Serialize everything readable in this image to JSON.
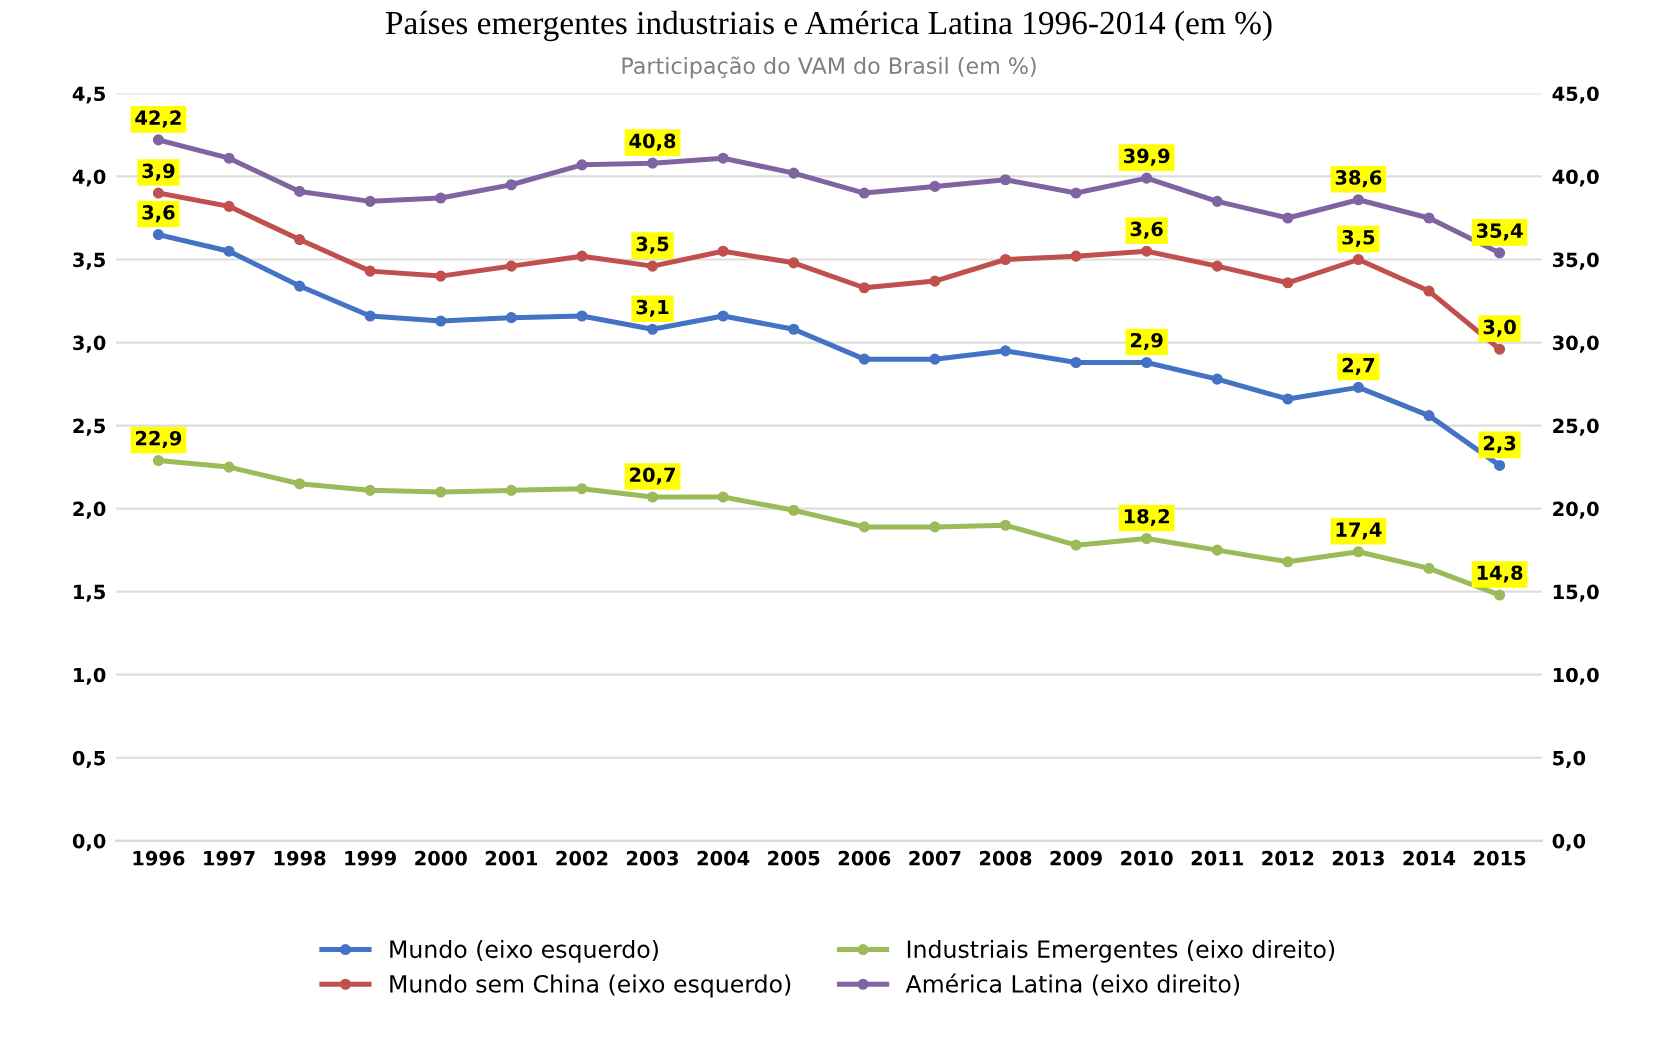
{
  "chart_data": {
    "type": "line",
    "title": "Países emergentes industriais e América Latina 1996-2014 (em %)",
    "subtitle": "Participação do VAM do Brasil (em %)",
    "categories": [
      "1996",
      "1997",
      "1998",
      "1999",
      "2000",
      "2001",
      "2002",
      "2003",
      "2004",
      "2005",
      "2006",
      "2007",
      "2008",
      "2009",
      "2010",
      "2011",
      "2012",
      "2013",
      "2014",
      "2015"
    ],
    "series": [
      {
        "name": "Mundo (eixo esquerdo)",
        "color": "#4472c4",
        "values": [
          3.65,
          3.55,
          3.34,
          3.16,
          3.13,
          3.15,
          3.16,
          3.08,
          3.16,
          3.08,
          2.9,
          2.9,
          2.95,
          2.88,
          2.88,
          2.78,
          2.66,
          2.73,
          2.56,
          2.26
        ],
        "value_labels": [
          "3,6",
          null,
          null,
          null,
          null,
          null,
          null,
          "3,1",
          null,
          null,
          null,
          null,
          null,
          null,
          "2,9",
          null,
          null,
          "2,7",
          null,
          "2,3"
        ]
      },
      {
        "name": "Mundo sem China (eixo esquerdo)",
        "color": "#c0504d",
        "values": [
          3.9,
          3.82,
          3.62,
          3.43,
          3.4,
          3.46,
          3.52,
          3.46,
          3.55,
          3.48,
          3.33,
          3.37,
          3.5,
          3.52,
          3.55,
          3.46,
          3.36,
          3.5,
          3.31,
          2.96
        ],
        "value_labels": [
          "3,9",
          null,
          null,
          null,
          null,
          null,
          null,
          "3,5",
          null,
          null,
          null,
          null,
          null,
          null,
          "3,6",
          null,
          null,
          "3,5",
          null,
          "3,0"
        ]
      },
      {
        "name": "Industriais Emergentes (eixo direito)",
        "color": "#9bbb59",
        "axis": "y2",
        "values": [
          22.9,
          22.5,
          21.5,
          21.1,
          21.0,
          21.1,
          21.2,
          20.7,
          20.7,
          19.9,
          18.9,
          18.9,
          19.0,
          17.8,
          18.2,
          17.5,
          16.8,
          17.4,
          16.4,
          14.8
        ],
        "value_labels": [
          "22,9",
          null,
          null,
          null,
          null,
          null,
          null,
          "20,7",
          null,
          null,
          null,
          null,
          null,
          null,
          "18,2",
          null,
          null,
          "17,4",
          null,
          "14,8"
        ]
      },
      {
        "name": "América Latina (eixo direito)",
        "color": "#8064a2",
        "axis": "y2",
        "values": [
          42.2,
          41.1,
          39.1,
          38.5,
          38.7,
          39.5,
          40.7,
          40.8,
          41.1,
          40.2,
          39.0,
          39.4,
          39.8,
          39.0,
          39.9,
          38.5,
          37.5,
          38.6,
          37.5,
          35.4
        ],
        "value_labels": [
          "42,2",
          null,
          null,
          null,
          null,
          null,
          null,
          "40,8",
          null,
          null,
          null,
          null,
          null,
          null,
          "39,9",
          null,
          null,
          "38,6",
          null,
          "35,4"
        ]
      }
    ],
    "ylim": [
      0,
      4.5
    ],
    "yticks": [
      {
        "value": 0,
        "label": "0,0"
      },
      {
        "value": 0.5,
        "label": "0,5"
      },
      {
        "value": 1,
        "label": "1,0"
      },
      {
        "value": 1.5,
        "label": "1,5"
      },
      {
        "value": 2,
        "label": "2,0"
      },
      {
        "value": 2.5,
        "label": "2,5"
      },
      {
        "value": 3,
        "label": "3,0"
      },
      {
        "value": 3.5,
        "label": "3,5"
      },
      {
        "value": 4,
        "label": "4,0"
      },
      {
        "value": 4.5,
        "label": "4,5"
      }
    ],
    "y2lim": [
      0,
      45
    ],
    "y2ticks": [
      {
        "value": 0,
        "label": "0,0"
      },
      {
        "value": 5,
        "label": "5,0"
      },
      {
        "value": 10,
        "label": "10,0"
      },
      {
        "value": 15,
        "label": "15,0"
      },
      {
        "value": 20,
        "label": "20,0"
      },
      {
        "value": 25,
        "label": "25,0"
      },
      {
        "value": 30,
        "label": "30,0"
      },
      {
        "value": 35,
        "label": "35,0"
      },
      {
        "value": 40,
        "label": "40,0"
      },
      {
        "value": 45,
        "label": "45,0"
      }
    ],
    "grid": "y",
    "legend": "bottom",
    "marker": "circle",
    "line_style": "solid"
  }
}
